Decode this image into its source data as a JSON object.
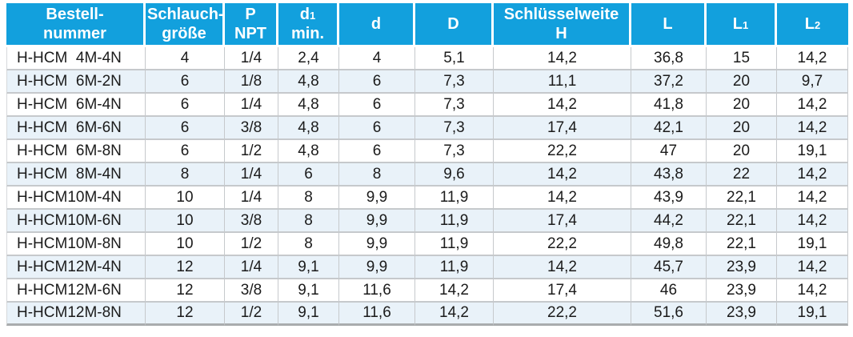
{
  "colors": {
    "header_bg": "#12A0DD",
    "zebra_row_bg": "#E9F2F9",
    "grid_line": "#C6C9CC",
    "bottom_border": "#A9ACAE",
    "header_text": "#FFFFFF",
    "body_text": "#1B1B1B"
  },
  "table": {
    "columns": [
      {
        "id": "bestellnummer",
        "main": "Bestell-",
        "sub": "",
        "line2": "nummer"
      },
      {
        "id": "schlauchgroesse",
        "main": "Schlauch-",
        "sub": "",
        "line2": "größe"
      },
      {
        "id": "p-npt",
        "main": "P",
        "sub": "",
        "line2": "NPT"
      },
      {
        "id": "d1-min",
        "main": "d",
        "sub": "1",
        "line2": "min."
      },
      {
        "id": "d",
        "main": "d",
        "sub": "",
        "line2": ""
      },
      {
        "id": "d-cap",
        "main": "D",
        "sub": "",
        "line2": ""
      },
      {
        "id": "schluesselweite-h",
        "main": "Schlüsselweite",
        "sub": "",
        "line2": "H"
      },
      {
        "id": "l",
        "main": "L",
        "sub": "",
        "line2": ""
      },
      {
        "id": "l1",
        "main": "L",
        "sub": "1",
        "line2": ""
      },
      {
        "id": "l2",
        "main": "L",
        "sub": "2",
        "line2": ""
      }
    ],
    "rows": [
      [
        "H-HCM  4M-4N",
        "4",
        "1/4",
        "2,4",
        "4",
        "5,1",
        "14,2",
        "36,8",
        "15",
        "14,2"
      ],
      [
        "H-HCM  6M-2N",
        "6",
        "1/8",
        "4,8",
        "6",
        "7,3",
        "11,1",
        "37,2",
        "20",
        "9,7"
      ],
      [
        "H-HCM  6M-4N",
        "6",
        "1/4",
        "4,8",
        "6",
        "7,3",
        "14,2",
        "41,8",
        "20",
        "14,2"
      ],
      [
        "H-HCM  6M-6N",
        "6",
        "3/8",
        "4,8",
        "6",
        "7,3",
        "17,4",
        "42,1",
        "20",
        "14,2"
      ],
      [
        "H-HCM  6M-8N",
        "6",
        "1/2",
        "4,8",
        "6",
        "7,3",
        "22,2",
        "47",
        "20",
        "19,1"
      ],
      [
        "H-HCM  8M-4N",
        "8",
        "1/4",
        "6",
        "8",
        "9,6",
        "14,2",
        "43,8",
        "22",
        "14,2"
      ],
      [
        "H-HCM10M-4N",
        "10",
        "1/4",
        "8",
        "9,9",
        "11,9",
        "14,2",
        "43,9",
        "22,1",
        "14,2"
      ],
      [
        "H-HCM10M-6N",
        "10",
        "3/8",
        "8",
        "9,9",
        "11,9",
        "17,4",
        "44,2",
        "22,1",
        "14,2"
      ],
      [
        "H-HCM10M-8N",
        "10",
        "1/2",
        "8",
        "9,9",
        "11,9",
        "22,2",
        "49,8",
        "22,1",
        "19,1"
      ],
      [
        "H-HCM12M-4N",
        "12",
        "1/4",
        "9,1",
        "9,9",
        "11,9",
        "14,2",
        "45,7",
        "23,9",
        "14,2"
      ],
      [
        "H-HCM12M-6N",
        "12",
        "3/8",
        "9,1",
        "11,6",
        "14,2",
        "17,4",
        "46",
        "23,9",
        "14,2"
      ],
      [
        "H-HCM12M-8N",
        "12",
        "1/2",
        "9,1",
        "11,6",
        "14,2",
        "22,2",
        "51,6",
        "23,9",
        "19,1"
      ]
    ]
  }
}
